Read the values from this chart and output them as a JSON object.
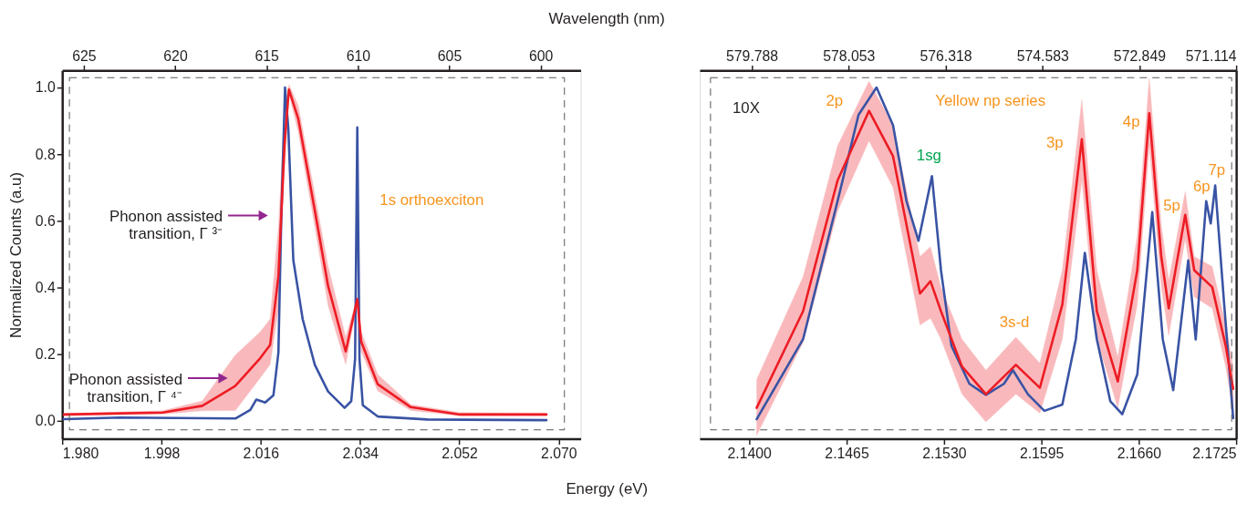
{
  "chart_data": [
    {
      "type": "line",
      "ylabel": "Normalized Counts (a.u)",
      "xlabel": "Energy (eV)",
      "x2label": "Wavelength (nm)",
      "xlim": [
        1.98,
        2.074
      ],
      "xticks": [
        {
          "value": 1.98,
          "label": "1.980"
        },
        1.998,
        2.016,
        2.034,
        2.052,
        {
          "value": 2.07,
          "label": "2.070"
        }
      ],
      "x2lim": [
        626.18,
        597.81
      ],
      "x2ticks": [
        625,
        620,
        615,
        610,
        605,
        600
      ],
      "ylim": [
        -0.054,
        1.051
      ],
      "yticks": [
        {
          "value": 0,
          "label": "0.0"
        },
        0.2,
        0.4,
        0.6,
        0.8,
        {
          "value": 1,
          "label": "1.0"
        }
      ],
      "grid": false,
      "series": [
        {
          "color": "#3953a4",
          "x": [
            1.9803,
            1.9905,
            2.0114,
            2.0141,
            2.0152,
            2.0168,
            2.0183,
            2.0192,
            2.0197,
            2.0204,
            2.021,
            2.0219,
            2.0236,
            2.0258,
            2.0282,
            2.0312,
            2.0324,
            2.0331,
            2.0335,
            2.0339,
            2.0345,
            2.0372,
            2.0462,
            2.0678
          ],
          "values": [
            0.005,
            0.01,
            0.007,
            0.033,
            0.064,
            0.055,
            0.077,
            0.205,
            0.598,
            1.0,
            0.876,
            0.482,
            0.305,
            0.168,
            0.088,
            0.039,
            0.059,
            0.185,
            0.88,
            0.185,
            0.047,
            0.013,
            0.004,
            0.002
          ]
        },
        {
          "color": "#ed1c24",
          "x": [
            1.9803,
            1.9982,
            2.0054,
            2.0114,
            2.0159,
            2.0177,
            2.0192,
            2.0203,
            2.0211,
            2.0228,
            2.0258,
            2.0282,
            2.0314,
            2.0335,
            2.0342,
            2.0372,
            2.0432,
            2.0521,
            2.0678
          ],
          "values": [
            0.019,
            0.025,
            0.045,
            0.105,
            0.188,
            0.228,
            0.434,
            0.827,
            0.994,
            0.906,
            0.631,
            0.405,
            0.208,
            0.365,
            0.238,
            0.11,
            0.041,
            0.019,
            0.019
          ],
          "lower": [
            0.015,
            0.02,
            0.03,
            0.031,
            0.129,
            0.169,
            0.336,
            0.749,
            0.98,
            0.866,
            0.582,
            0.346,
            0.169,
            0.355,
            0.208,
            0.09,
            0.031,
            0.015,
            0.015
          ],
          "upper": [
            0.022,
            0.03,
            0.06,
            0.198,
            0.267,
            0.306,
            0.582,
            0.926,
            1.009,
            0.945,
            0.68,
            0.464,
            0.252,
            0.37,
            0.267,
            0.139,
            0.049,
            0.025,
            0.023
          ]
        }
      ],
      "annotations": [
        "Phonon assisted\ntransition, Γ ³⁻",
        "Phonon assisted\ntransition, Γ ⁴⁻",
        "1s orthoexciton"
      ]
    },
    {
      "type": "line",
      "xlim": [
        2.1367,
        2.1725
      ],
      "xticks": [
        {
          "value": 2.14,
          "label": "2.1400"
        },
        2.1465,
        {
          "value": 2.153,
          "label": "2.1530"
        },
        2.1595,
        {
          "value": 2.166,
          "label": "2.1660"
        },
        2.1725
      ],
      "x2lim": [
        580.72,
        571.114
      ],
      "x2ticks": [
        579.788,
        578.053,
        576.318,
        574.583,
        572.849,
        571.114
      ],
      "ylim": [
        -0.054,
        1.051
      ],
      "tick_labels": "x",
      "grid": false,
      "series": [
        {
          "color": "#3953a4",
          "x": [
            2.1405,
            2.1436,
            2.1459,
            2.1473,
            2.1485,
            2.1496,
            2.1505,
            2.1513,
            2.1522,
            2.1528,
            2.1535,
            2.1547,
            2.1558,
            2.157,
            2.1576,
            2.1586,
            2.1597,
            2.1609,
            2.1618,
            2.1624,
            2.1632,
            2.1641,
            2.1649,
            2.1659,
            2.1669,
            2.1676,
            2.1683,
            2.1693,
            2.1698,
            2.1705,
            2.1708,
            2.1711,
            2.1717,
            2.1723
          ],
          "values": [
            0.005,
            0.245,
            0.659,
            0.918,
            1.0,
            0.887,
            0.659,
            0.54,
            0.734,
            0.452,
            0.225,
            0.111,
            0.078,
            0.111,
            0.152,
            0.08,
            0.03,
            0.049,
            0.245,
            0.504,
            0.245,
            0.059,
            0.02,
            0.139,
            0.626,
            0.245,
            0.092,
            0.481,
            0.244,
            0.659,
            0.592,
            0.706,
            0.349,
            0.008
          ]
        },
        {
          "color": "#ed1c24",
          "x": [
            2.1405,
            2.1436,
            2.1459,
            2.148,
            2.1496,
            2.1514,
            2.1521,
            2.1528,
            2.1542,
            2.1558,
            2.1578,
            2.1594,
            2.1609,
            2.1622,
            2.1632,
            2.1646,
            2.1659,
            2.1667,
            2.1675,
            2.168,
            2.1691,
            2.1697,
            2.1709,
            2.1718,
            2.1723
          ],
          "values": [
            0.039,
            0.329,
            0.721,
            0.93,
            0.794,
            0.382,
            0.419,
            0.329,
            0.163,
            0.08,
            0.168,
            0.099,
            0.349,
            0.845,
            0.329,
            0.118,
            0.452,
            0.923,
            0.493,
            0.337,
            0.618,
            0.452,
            0.401,
            0.225,
            0.096
          ],
          "lower": [
            -0.044,
            0.235,
            0.628,
            0.84,
            0.7,
            0.287,
            0.308,
            0.245,
            0.08,
            -0.003,
            0.08,
            0.023,
            0.245,
            0.721,
            0.245,
            0.039,
            0.349,
            0.825,
            0.401,
            0.256,
            0.546,
            0.372,
            0.338,
            0.163,
            0.03
          ],
          "upper": [
            0.124,
            0.432,
            0.825,
            1.019,
            0.887,
            0.493,
            0.522,
            0.401,
            0.245,
            0.152,
            0.251,
            0.173,
            0.452,
            0.964,
            0.452,
            0.191,
            0.555,
            1.028,
            0.589,
            0.421,
            0.688,
            0.493,
            0.463,
            0.287,
            0.163
          ]
        }
      ],
      "annotations": [
        "10X",
        "2p",
        "Yellow np series",
        "1sg",
        "3s-d",
        "3p",
        "4p",
        "5p",
        "6p",
        "7p"
      ]
    }
  ]
}
